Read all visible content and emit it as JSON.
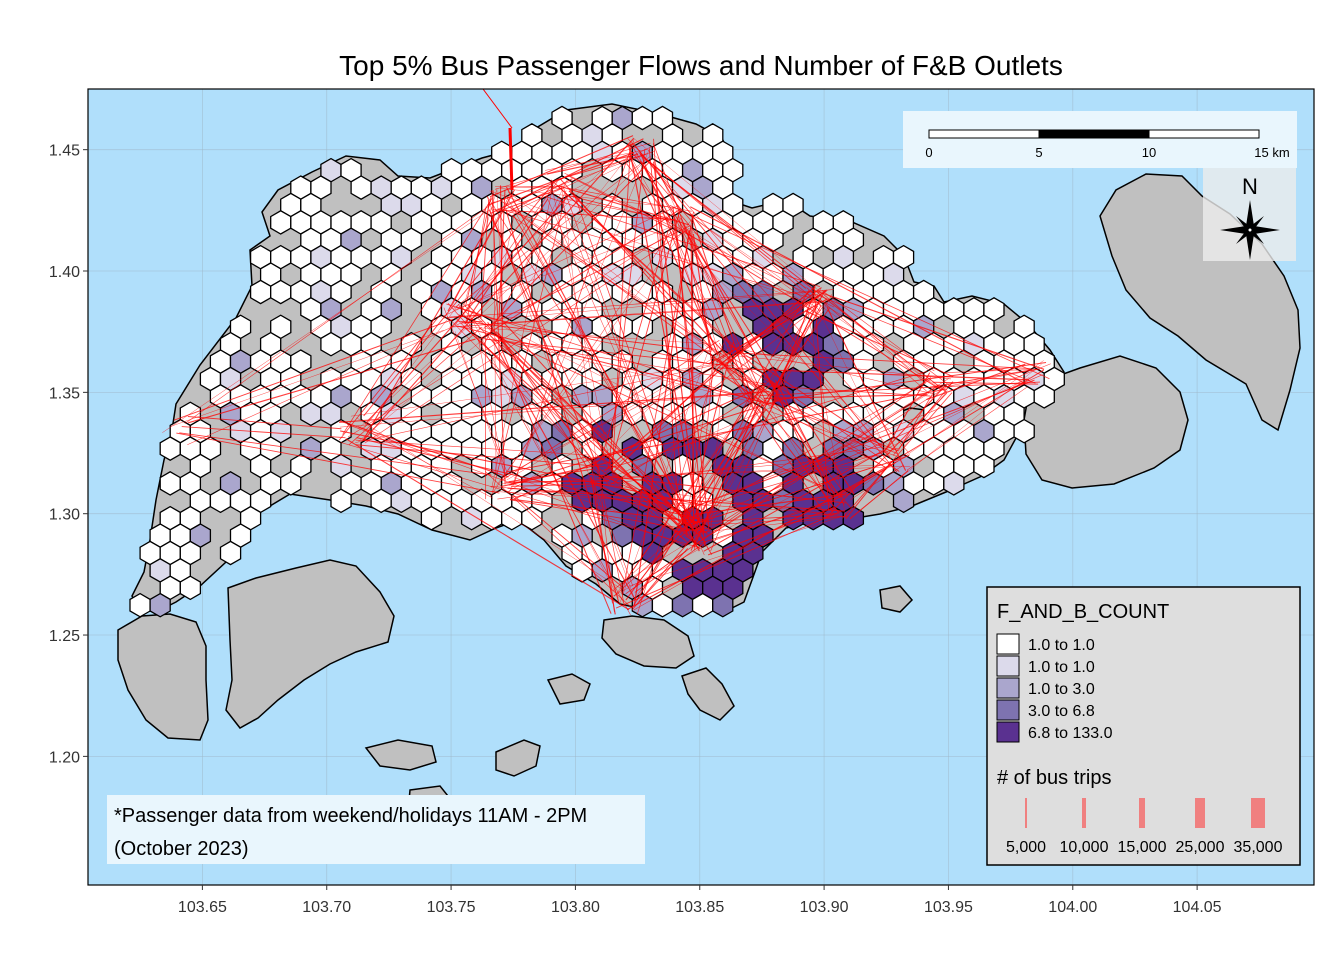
{
  "title": "Top 5% Bus Passenger Flows and Number of F&B Outlets",
  "map": {
    "x_ticks": [
      "103.65",
      "103.70",
      "103.75",
      "103.80",
      "103.85",
      "103.90",
      "103.95",
      "104.00",
      "104.05"
    ],
    "x_tick_values": [
      103.65,
      103.7,
      103.75,
      103.8,
      103.85,
      103.9,
      103.95,
      104.0,
      104.05
    ],
    "y_ticks": [
      "1.45",
      "1.40",
      "1.35",
      "1.30",
      "1.25",
      "1.20"
    ],
    "y_tick_values": [
      1.45,
      1.4,
      1.35,
      1.3,
      1.25,
      1.2
    ],
    "xlim": [
      103.604,
      104.097
    ],
    "ylim": [
      1.147,
      1.475
    ],
    "colors": {
      "water": "#b0dffb",
      "land": "#c0c0c0",
      "flow": "#ff0000",
      "grid": "#9fb8c8"
    }
  },
  "scale_bar": {
    "labels": [
      "0",
      "5",
      "10",
      "15 km"
    ]
  },
  "north_arrow": {
    "label": "N"
  },
  "note": {
    "line1": "*Passenger data from weekend/holidays 11AM - 2PM",
    "line2": "(October 2023)"
  },
  "legend": {
    "fill_title": "F_AND_B_COUNT",
    "fill_classes": [
      {
        "label": "1.0 to 1.0",
        "color": "#ffffff"
      },
      {
        "label": "1.0 to 1.0",
        "color": "#dcdaeb"
      },
      {
        "label": "1.0 to 3.0",
        "color": "#aaa6cd"
      },
      {
        "label": "3.0 to 6.8",
        "color": "#7e73b0"
      },
      {
        "label": "6.8 to 133.0",
        "color": "#5a3190"
      }
    ],
    "line_title": "# of bus trips",
    "line_classes": [
      {
        "label": "5,000",
        "width_value": 5000
      },
      {
        "label": "10,000",
        "width_value": 10000
      },
      {
        "label": "15,000",
        "width_value": 15000
      },
      {
        "label": "25,000",
        "width_value": 25000
      },
      {
        "label": "35,000",
        "width_value": 35000
      }
    ],
    "line_color": "#f08080"
  }
}
